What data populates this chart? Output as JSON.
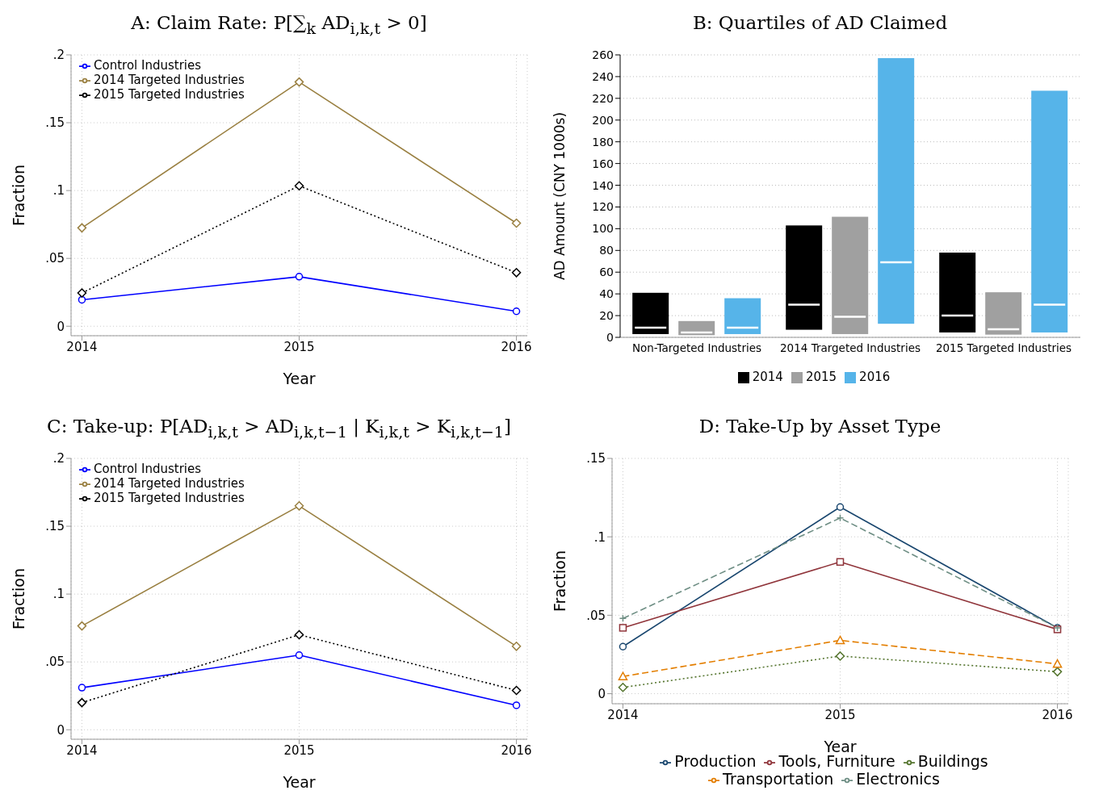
{
  "chart_data": [
    {
      "type": "line",
      "title": "A: Claim Rate: P[∑$_{k}$ AD$_{i,k,t}$ > 0]",
      "xlabel": "Year",
      "ylabel": "Fraction",
      "x": [
        2014,
        2015,
        2016
      ],
      "xlim": [
        2013.95,
        2016.05
      ],
      "xticks": [
        2014,
        2015,
        2016
      ],
      "ylim": [
        -0.007,
        0.2
      ],
      "yticks": [
        0,
        {
          "value": 0.05,
          "label": ".05"
        },
        {
          "value": 0.1,
          "label": ".1"
        },
        {
          "value": 0.15,
          "label": ".15"
        },
        {
          "value": 0.2,
          "label": ".2"
        }
      ],
      "grid": true,
      "legend": "top left",
      "series": [
        {
          "name": "Control Industries",
          "color": "#0000ff",
          "values": [
            0.0195,
            0.0365,
            0.011
          ],
          "marker": "circle",
          "line_style": "solid"
        },
        {
          "name": "2014 Targeted Industries",
          "color": "#9a8042",
          "values": [
            0.0725,
            0.18,
            0.076
          ],
          "marker": "diamond",
          "line_style": "solid"
        },
        {
          "name": "2015 Targeted Industries",
          "color": "#000000",
          "values": [
            0.0245,
            0.1035,
            0.0395
          ],
          "marker": "diamond",
          "line_style": "dotted"
        }
      ]
    },
    {
      "type": "box",
      "title": "B: Quartiles of AD Claimed",
      "ylabel": "AD Amount (CNY 1000s)",
      "categories": [
        "Non-Targeted Industries",
        "2014 Trargeted Industries",
        "2015 Targeted Industries"
      ],
      "ylim": [
        0,
        260
      ],
      "yticks": [
        0,
        20,
        40,
        60,
        80,
        100,
        120,
        140,
        160,
        180,
        200,
        220,
        240,
        260
      ],
      "grid": "y",
      "legend": "bottom",
      "series": [
        {
          "name": "2014",
          "color": "#000000",
          "boxes": [
            {
              "low": 3,
              "q1": 3,
              "median": 9,
              "q3": 41,
              "high": 41
            },
            {
              "low": 7,
              "q1": 7,
              "median": 30,
              "q3": 103,
              "high": 103
            },
            {
              "low": 4.5,
              "q1": 4.5,
              "median": 20,
              "q3": 78,
              "high": 78
            }
          ]
        },
        {
          "name": "2015",
          "color": "#a0a0a0",
          "boxes": [
            {
              "low": 2,
              "q1": 2,
              "median": 4.5,
              "q3": 15,
              "high": 15
            },
            {
              "low": 3,
              "q1": 3,
              "median": 19,
              "q3": 111,
              "high": 111
            },
            {
              "low": 2.5,
              "q1": 2.5,
              "median": 7.5,
              "q3": 41.5,
              "high": 41.5
            }
          ]
        },
        {
          "name": "2016",
          "color": "#56b4e9",
          "boxes": [
            {
              "low": 3,
              "q1": 3,
              "median": 9,
              "q3": 36,
              "high": 36
            },
            {
              "low": 12.5,
              "q1": 12.5,
              "median": 69,
              "q3": 257,
              "high": 257
            },
            {
              "low": 4.5,
              "q1": 4.5,
              "median": 30,
              "q3": 227,
              "high": 227
            }
          ]
        }
      ]
    },
    {
      "type": "line",
      "title": "C: Take-up: P[AD$_{i,k,t}$ > AD$_{i,k,t−1}$ | K$_{i,k,t}$ > K$_{i,k,t−1}$]",
      "xlabel": "Year",
      "ylabel": "Fraction",
      "x": [
        2014,
        2015,
        2016
      ],
      "xlim": [
        2013.95,
        2016.05
      ],
      "xticks": [
        2014,
        2015,
        2016
      ],
      "ylim": [
        -0.007,
        0.2
      ],
      "yticks": [
        0,
        {
          "value": 0.05,
          "label": ".05"
        },
        {
          "value": 0.1,
          "label": ".1"
        },
        {
          "value": 0.15,
          "label": ".15"
        },
        {
          "value": 0.2,
          "label": ".2"
        }
      ],
      "grid": true,
      "legend": "top left",
      "series": [
        {
          "name": "Control Industries",
          "color": "#0000ff",
          "values": [
            0.031,
            0.055,
            0.018
          ],
          "marker": "circle",
          "line_style": "solid"
        },
        {
          "name": "2014 Targeted Industries",
          "color": "#9a8042",
          "values": [
            0.0765,
            0.165,
            0.0615
          ],
          "marker": "diamond",
          "line_style": "solid"
        },
        {
          "name": "2015 Targeted Industries",
          "color": "#000000",
          "values": [
            0.02,
            0.07,
            0.029
          ],
          "marker": "diamond",
          "line_style": "dotted"
        }
      ]
    },
    {
      "type": "line",
      "title": "D: Take-Up by Asset Type",
      "xlabel": "Year",
      "ylabel": "Fraction",
      "x": [
        2014,
        2015,
        2016
      ],
      "xlim": [
        2013.95,
        2016.05
      ],
      "xticks": [
        2014,
        2015,
        2016
      ],
      "ylim": [
        -0.0064,
        0.15
      ],
      "yticks": [
        0,
        {
          "value": 0.05,
          "label": ".05"
        },
        {
          "value": 0.1,
          "label": ".1"
        },
        {
          "value": 0.15,
          "label": ".15"
        }
      ],
      "grid": true,
      "legend": "bottom",
      "series": [
        {
          "name": "Production",
          "color": "#1a476f",
          "values": [
            0.03,
            0.119,
            0.042
          ],
          "marker": "circle",
          "line_style": "solid"
        },
        {
          "name": "Tools, Furniture",
          "color": "#90353b",
          "values": [
            0.042,
            0.084,
            0.041
          ],
          "marker": "square",
          "line_style": "solid"
        },
        {
          "name": "Buildings",
          "color": "#55752f",
          "values": [
            0.004,
            0.024,
            0.014
          ],
          "marker": "diamond",
          "line_style": "dotted"
        },
        {
          "name": "Transportation",
          "color": "#e37e00",
          "values": [
            0.011,
            0.034,
            0.019
          ],
          "marker": "triangle",
          "line_style": "dashed"
        },
        {
          "name": "Electronics",
          "color": "#6e8e84",
          "values": [
            0.048,
            0.112,
            0.042
          ],
          "marker": "cross",
          "line_style": "dashed"
        }
      ]
    }
  ]
}
